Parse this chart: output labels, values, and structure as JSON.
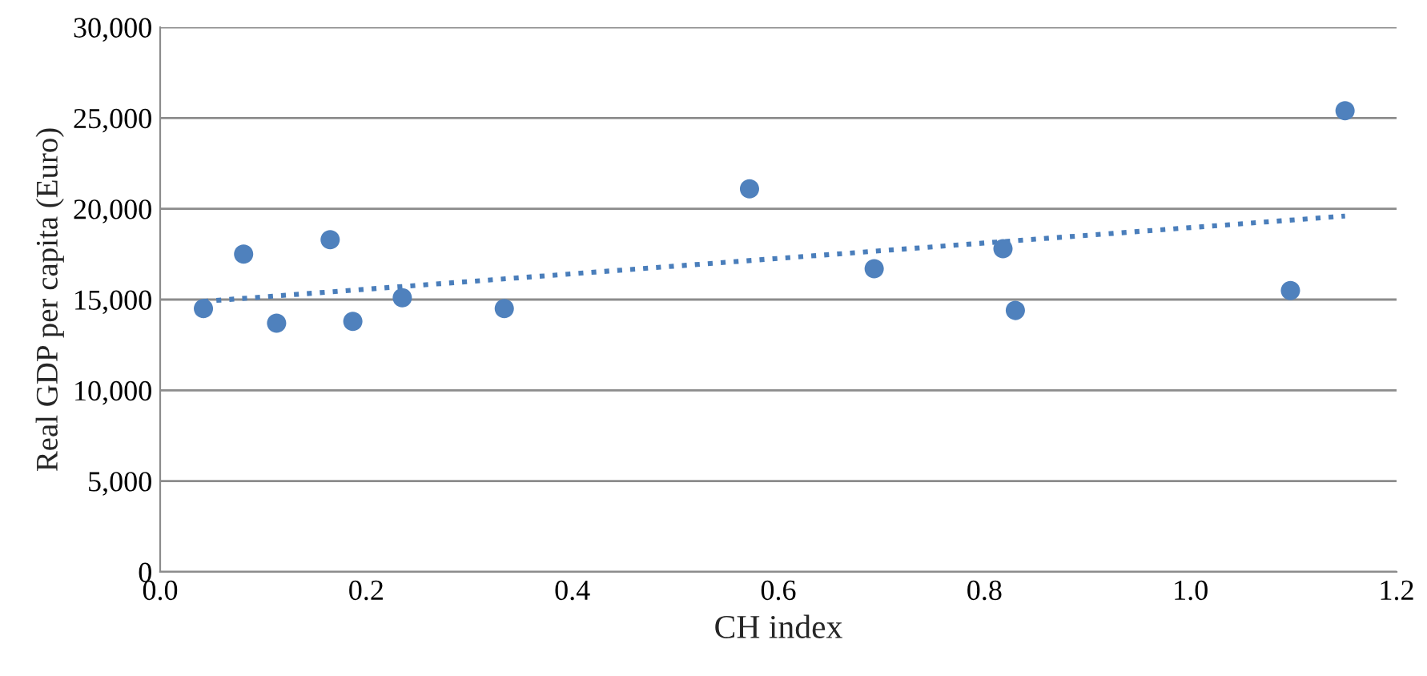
{
  "chart_data": {
    "type": "scatter",
    "xlabel": "CH index",
    "ylabel": "Real GDP per capita (Euro)",
    "series": [
      {
        "color": "#4f81bd",
        "marker": "circle",
        "x": [
          0.042,
          0.081,
          0.113,
          0.165,
          0.187,
          0.235,
          0.334,
          0.572,
          0.693,
          0.818,
          0.83,
          1.097,
          1.15
        ],
        "values": [
          14500,
          17500,
          13700,
          18300,
          13800,
          15100,
          14500,
          21100,
          16700,
          17800,
          14400,
          15500,
          25400
        ]
      },
      {
        "type": "line",
        "color": "#4a7ebb",
        "line_style": "dotted",
        "x": [
          0.042,
          1.15
        ],
        "values": [
          14900,
          19600
        ]
      }
    ],
    "xlim": [
      0,
      1.2
    ],
    "xticks": [
      {
        "value": 0,
        "label": "0.0"
      },
      {
        "value": 0.2,
        "label": "0.2"
      },
      {
        "value": 0.4,
        "label": "0.4"
      },
      {
        "value": 0.6,
        "label": "0.6"
      },
      {
        "value": 0.8,
        "label": "0.8"
      },
      {
        "value": 1.0,
        "label": "1.0"
      },
      {
        "value": 1.2,
        "label": "1.2"
      }
    ],
    "ylim": [
      0,
      30000
    ],
    "yticks": [
      {
        "value": 0,
        "label": "0"
      },
      {
        "value": 5000,
        "label": "5,000"
      },
      {
        "value": 10000,
        "label": "10,000"
      },
      {
        "value": 15000,
        "label": "15,000"
      },
      {
        "value": 20000,
        "label": "20,000"
      },
      {
        "value": 25000,
        "label": "25,000"
      },
      {
        "value": 30000,
        "label": "30,000"
      }
    ],
    "grid": "y"
  }
}
